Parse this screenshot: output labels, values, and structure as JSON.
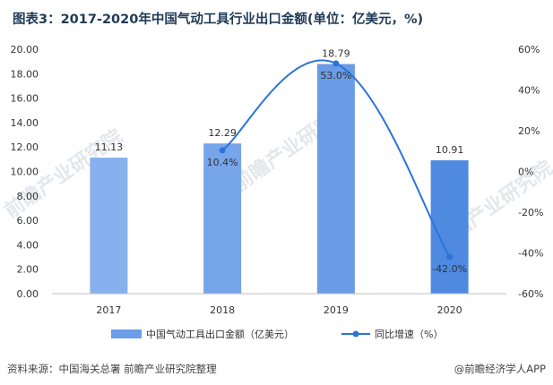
{
  "title": "图表3：2017-2020年中国气动工具行业出口金额(单位：亿美元，%)",
  "source": "资料来源：中国海关总署 前瞻产业研究院整理",
  "brand": "@前瞻经济学人APP",
  "watermark": "前瞻产业研究院",
  "colors": {
    "bar": "#6b9de8",
    "line": "#2b74d9",
    "title": "#1f3b57"
  },
  "chart_data": {
    "type": "bar",
    "categories": [
      "2017",
      "2018",
      "2019",
      "2020"
    ],
    "series": [
      {
        "name": "中国气动工具出口金额（亿美元）",
        "type": "bar",
        "axis": "left",
        "values": [
          11.13,
          12.29,
          18.79,
          10.91
        ],
        "labels": [
          "11.13",
          "12.29",
          "18.79",
          "10.91"
        ]
      },
      {
        "name": "同比增速（%）",
        "type": "line",
        "axis": "right",
        "values": [
          null,
          10.4,
          53.0,
          -42.0
        ],
        "labels": [
          "",
          "10.4%",
          "53.0%",
          "-42.0%"
        ]
      }
    ],
    "left_axis": {
      "min": 0,
      "max": 20,
      "step": 2,
      "ticks": [
        "0.00",
        "2.00",
        "4.00",
        "6.00",
        "8.00",
        "10.00",
        "12.00",
        "14.00",
        "16.00",
        "18.00",
        "20.00"
      ]
    },
    "right_axis": {
      "min": -60,
      "max": 60,
      "step": 20,
      "ticks": [
        "-60%",
        "-40%",
        "-20%",
        "0%",
        "20%",
        "40%",
        "60%"
      ]
    },
    "legend": {
      "position": "bottom"
    },
    "grid": false
  }
}
